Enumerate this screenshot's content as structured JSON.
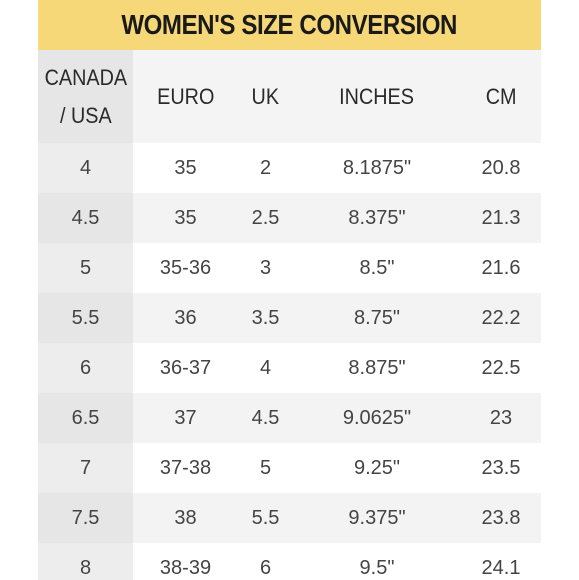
{
  "title": "WOMEN'S SIZE CONVERSION",
  "headers": [
    "CANADA\n/ USA",
    "EURO",
    "UK",
    "INCHES",
    "CM"
  ],
  "rows": [
    [
      "4",
      "35",
      "2",
      "8.1875\"",
      "20.8"
    ],
    [
      "4.5",
      "35",
      "2.5",
      "8.375\"",
      "21.3"
    ],
    [
      "5",
      "35-36",
      "3",
      "8.5\"",
      "21.6"
    ],
    [
      "5.5",
      "36",
      "3.5",
      "8.75\"",
      "22.2"
    ],
    [
      "6",
      "36-37",
      "4",
      "8.875\"",
      "22.5"
    ],
    [
      "6.5",
      "37",
      "4.5",
      "9.0625\"",
      "23"
    ],
    [
      "7",
      "37-38",
      "5",
      "9.25\"",
      "23.5"
    ],
    [
      "7.5",
      "38",
      "5.5",
      "9.375\"",
      "23.8"
    ],
    [
      "8",
      "38-39",
      "6",
      "9.5\"",
      "24.1"
    ]
  ],
  "colors": {
    "title_background": "#f7d878",
    "header_background": "#f4f4f4",
    "first_column_background": "#e6e6e6",
    "stripe_background": "#f3f3f3"
  }
}
